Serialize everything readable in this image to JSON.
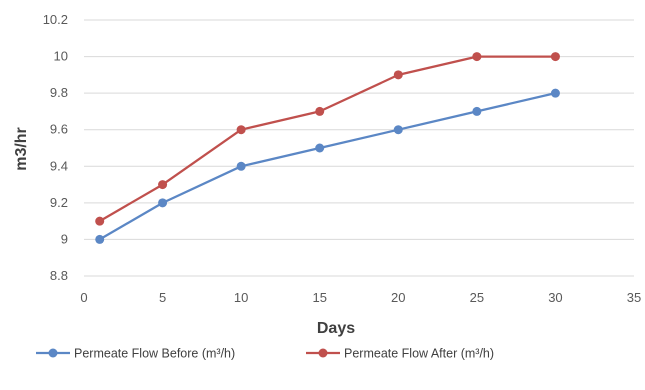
{
  "chart_data": {
    "type": "line",
    "title": "",
    "xlabel": "Days",
    "ylabel": "m3/hr",
    "xlim": [
      0,
      35
    ],
    "ylim": [
      8.8,
      10.2
    ],
    "x_ticks": [
      "0",
      "5",
      "10",
      "15",
      "20",
      "25",
      "30",
      "35"
    ],
    "y_ticks": [
      "8.8",
      "9",
      "9.2",
      "9.4",
      "9.6",
      "9.8",
      "10",
      "10.2"
    ],
    "grid": "horizontal",
    "legend_position": "bottom",
    "series": [
      {
        "name": "Permeate Flow Before (m³/h)",
        "color": "#5b87c5",
        "x": [
          1,
          5,
          10,
          15,
          20,
          25,
          30
        ],
        "y": [
          9.0,
          9.2,
          9.4,
          9.5,
          9.6,
          9.7,
          9.8
        ]
      },
      {
        "name": "Permeate Flow After (m³/h)",
        "color": "#c0504d",
        "x": [
          1,
          5,
          10,
          15,
          20,
          25,
          30
        ],
        "y": [
          9.1,
          9.3,
          9.6,
          9.7,
          9.9,
          10.0,
          10.0
        ]
      }
    ]
  }
}
